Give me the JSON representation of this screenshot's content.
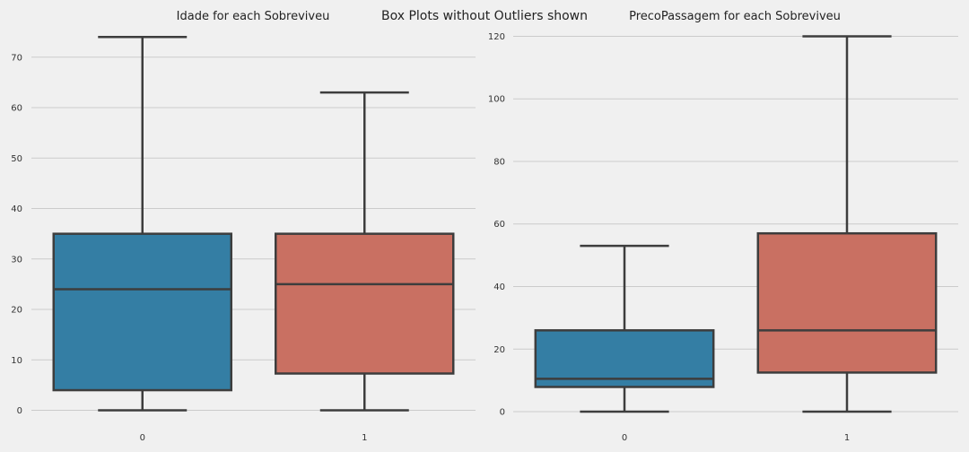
{
  "figure": {
    "suptitle": "Box Plots without Outliers shown",
    "background": "#f0f0f0",
    "grid_color": "#cbcbcb",
    "line_color": "#3d3d3d"
  },
  "chart_data": [
    {
      "type": "box",
      "title": "Idade for each Sobreviveu",
      "xlabel": "",
      "ylabel": "",
      "categories": [
        "0",
        "1"
      ],
      "colors": [
        "#347ea4",
        "#c97062"
      ],
      "ylim": [
        -1.5,
        76
      ],
      "yticks": [
        0,
        10,
        20,
        30,
        40,
        50,
        60,
        70
      ],
      "grid": "horizontal",
      "boxes": [
        {
          "category": "0",
          "whisker_low": 0,
          "q1": 4,
          "median": 24,
          "q3": 35,
          "whisker_high": 74
        },
        {
          "category": "1",
          "whisker_low": 0,
          "q1": 7.3,
          "median": 25,
          "q3": 35,
          "whisker_high": 63
        }
      ]
    },
    {
      "type": "box",
      "title": "PrecoPassagem for each Sobreviveu",
      "xlabel": "",
      "ylabel": "",
      "categories": [
        "0",
        "1"
      ],
      "colors": [
        "#347ea4",
        "#c97062"
      ],
      "ylim": [
        -2,
        123
      ],
      "yticks": [
        0,
        20,
        40,
        60,
        80,
        100,
        120
      ],
      "grid": "horizontal",
      "boxes": [
        {
          "category": "0",
          "whisker_low": 0,
          "q1": 7.9,
          "median": 10.5,
          "q3": 26,
          "whisker_high": 53
        },
        {
          "category": "1",
          "whisker_low": 0,
          "q1": 12.5,
          "median": 26,
          "q3": 57,
          "whisker_high": 120
        }
      ]
    }
  ]
}
